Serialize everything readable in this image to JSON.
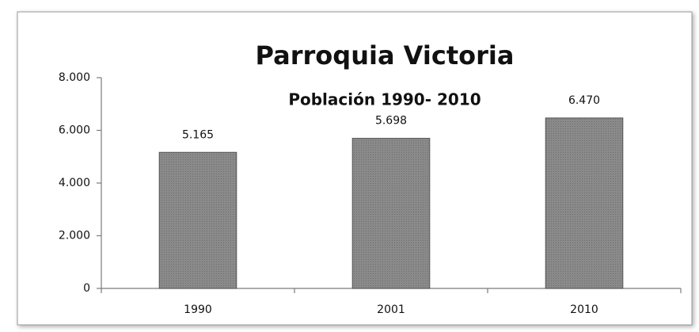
{
  "chart_data": {
    "type": "bar",
    "title": "Parroquia Victoria",
    "subtitle": "Población 1990- 2010",
    "categories": [
      "1990",
      "2001",
      "2010"
    ],
    "values": [
      5165,
      5698,
      6470
    ],
    "value_labels": [
      "5.165",
      "5.698",
      "6.470"
    ],
    "color": "#8a8a8a",
    "ylim": [
      0,
      8000
    ],
    "yticks": [
      0,
      {
        "value": 2000,
        "label": "2.000"
      },
      {
        "value": 4000,
        "label": "4.000"
      },
      {
        "value": 6000,
        "label": "6.000"
      },
      {
        "value": 8000,
        "label": "8.000"
      }
    ],
    "grid": false
  }
}
